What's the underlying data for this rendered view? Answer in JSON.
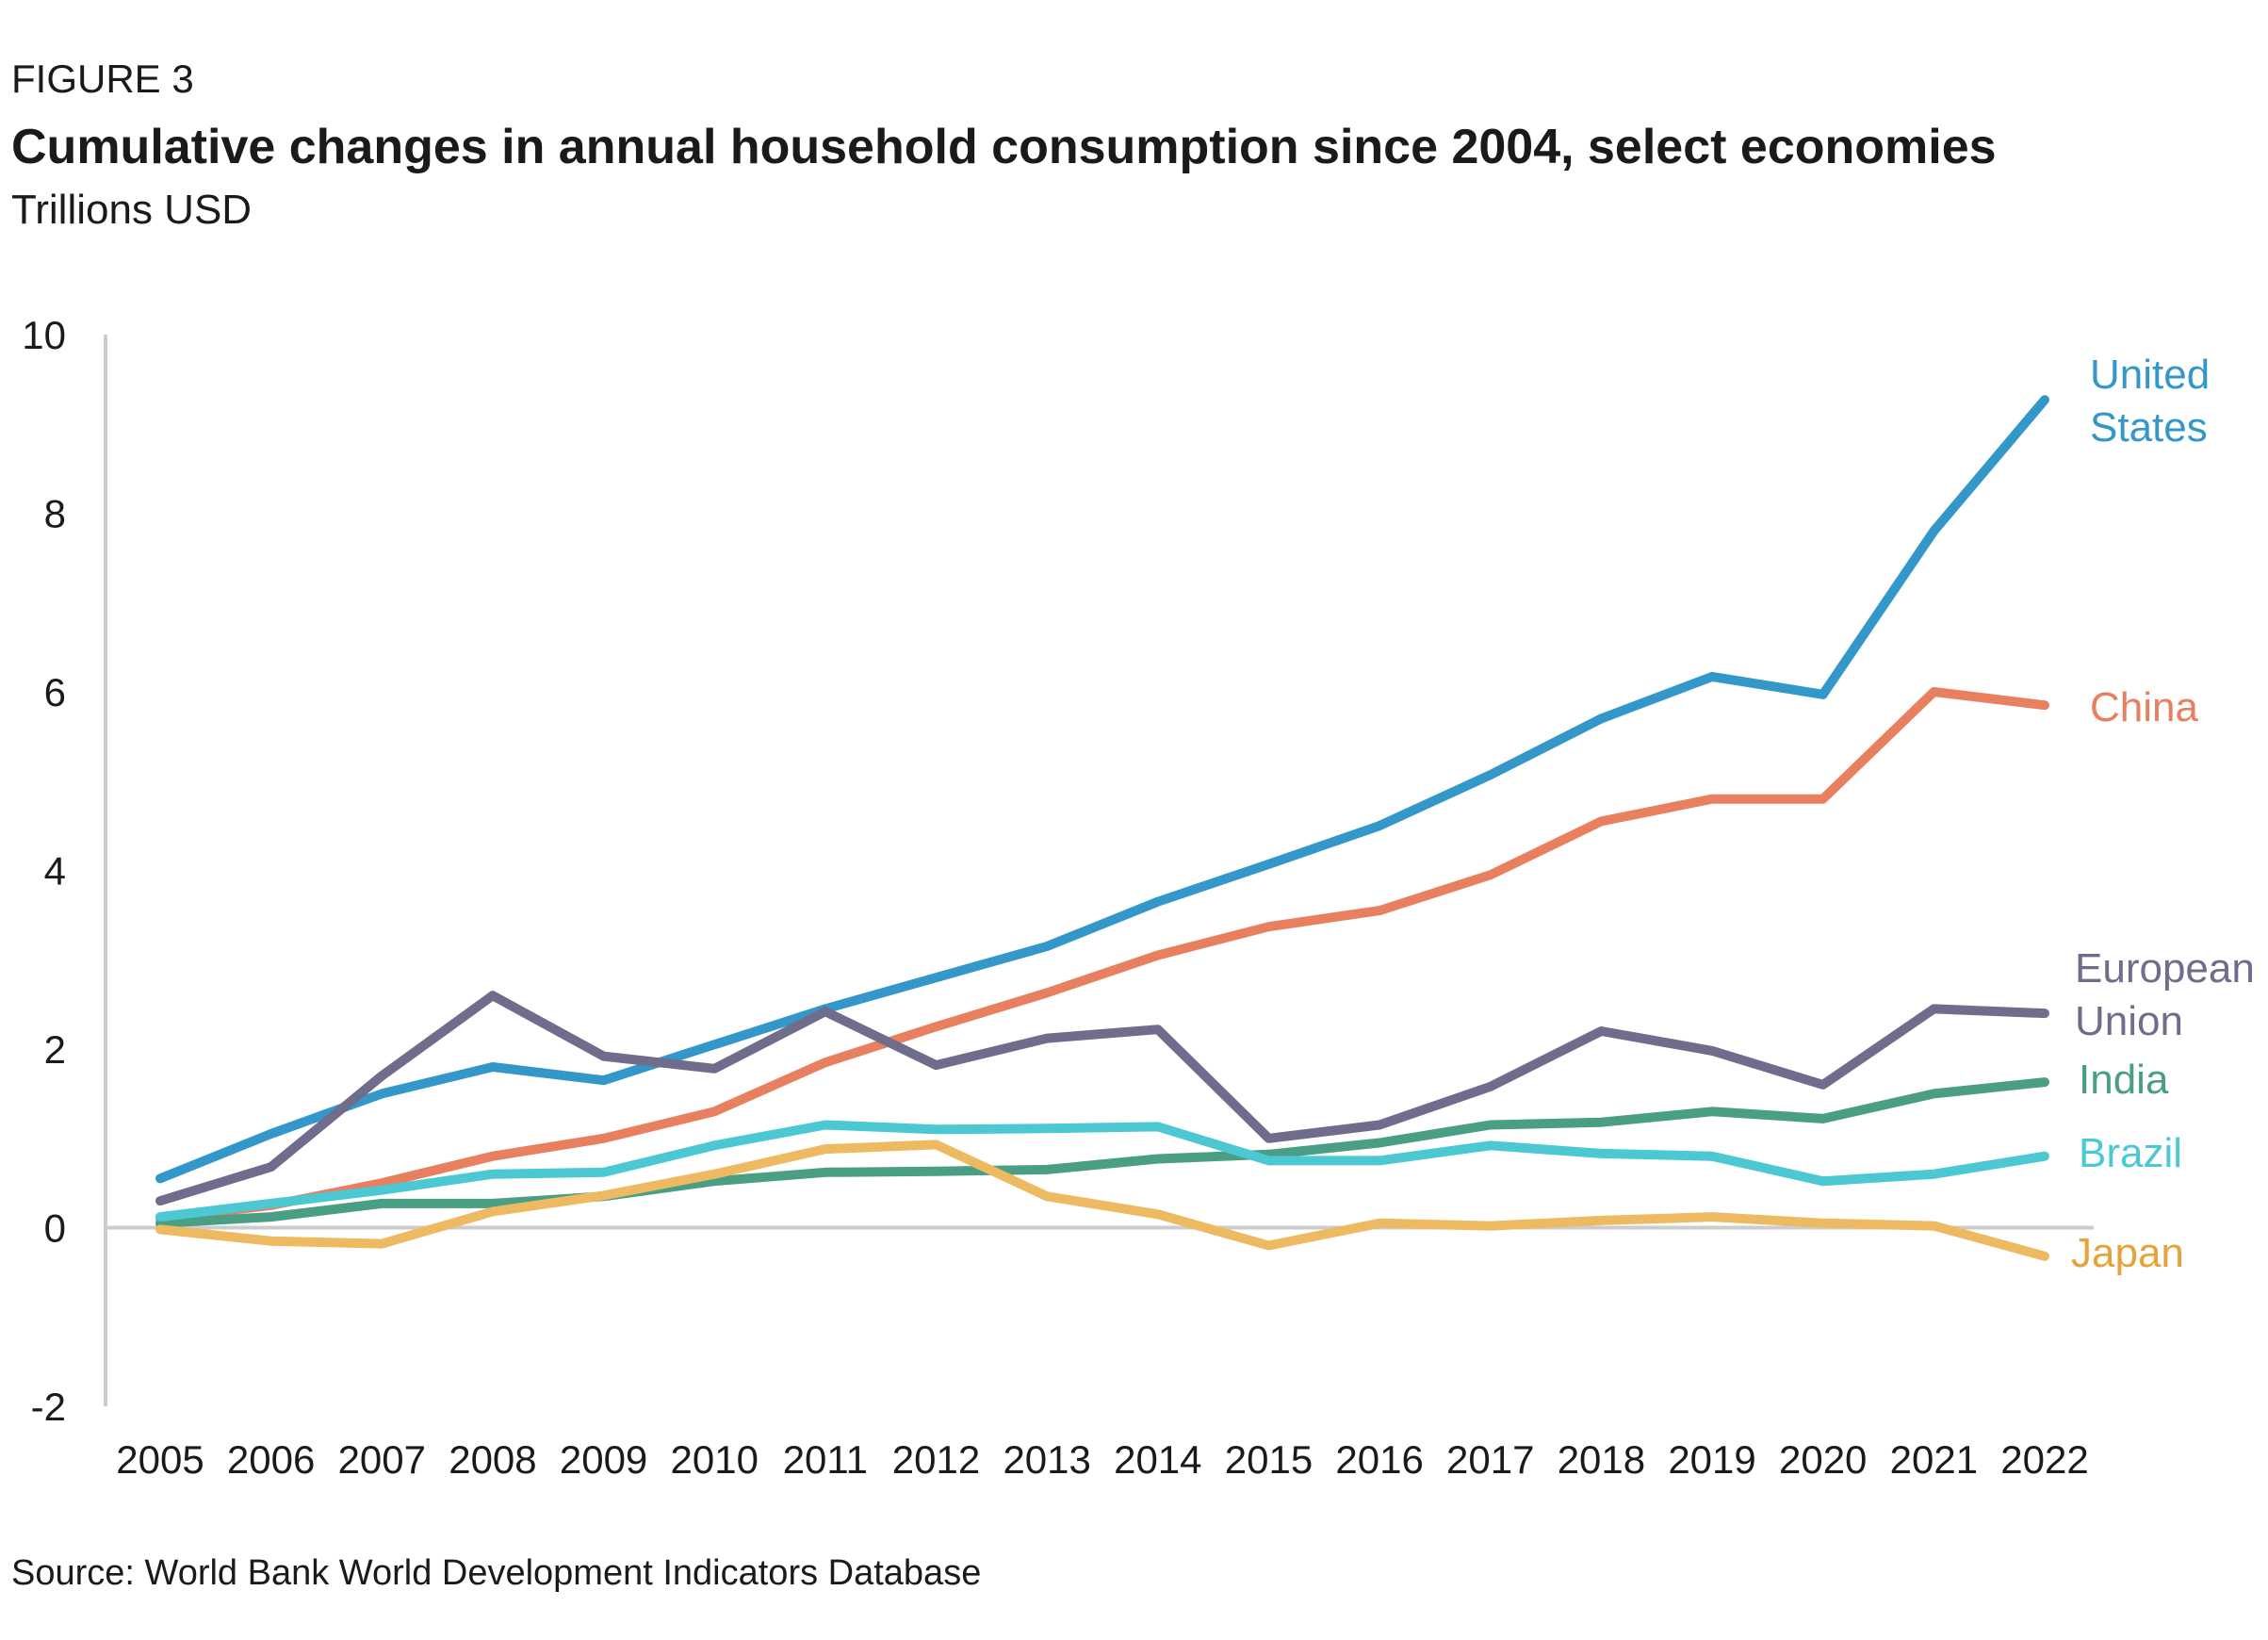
{
  "figure_label": "FIGURE 3",
  "title": "Cumulative changes in annual household consumption since 2004, select economies",
  "subtitle": "Trillions USD",
  "source": "Source: World Bank World Development Indicators Database",
  "chart_data": {
    "type": "line",
    "title": "Cumulative changes in annual household consumption since 2004, select economies",
    "ylabel": "Trillions USD",
    "xlabel": "",
    "x": [
      "2005",
      "2006",
      "2007",
      "2008",
      "2009",
      "2010",
      "2011",
      "2012",
      "2013",
      "2014",
      "2015",
      "2016",
      "2017",
      "2018",
      "2019",
      "2020",
      "2021",
      "2022"
    ],
    "ylim": [
      -2,
      10
    ],
    "yticks": [
      -2,
      0,
      2,
      4,
      6,
      8,
      10
    ],
    "grid": false,
    "legend": "direct-labels-right",
    "series": [
      {
        "name": "United States",
        "label_lines": [
          "United",
          "States"
        ],
        "color": "#3497C9",
        "values": [
          0.55,
          1.05,
          1.5,
          1.8,
          1.65,
          2.05,
          2.45,
          2.8,
          3.15,
          3.65,
          4.07,
          4.5,
          5.07,
          5.7,
          6.17,
          5.97,
          7.8,
          9.27
        ]
      },
      {
        "name": "China",
        "label_lines": [
          "China"
        ],
        "color": "#E8805F",
        "values": [
          0.1,
          0.25,
          0.5,
          0.8,
          1.0,
          1.3,
          1.85,
          2.25,
          2.63,
          3.05,
          3.37,
          3.55,
          3.95,
          4.55,
          4.8,
          4.8,
          6.0,
          5.85
        ]
      },
      {
        "name": "European Union",
        "label_lines": [
          "European",
          "Union"
        ],
        "color": "#706C8C",
        "values": [
          0.3,
          0.68,
          1.7,
          2.6,
          1.92,
          1.78,
          2.42,
          1.82,
          2.12,
          2.22,
          1.0,
          1.15,
          1.58,
          2.2,
          1.98,
          1.6,
          2.45,
          2.4
        ]
      },
      {
        "name": "India",
        "label_lines": [
          "India"
        ],
        "color": "#4A9E84",
        "values": [
          0.05,
          0.12,
          0.27,
          0.27,
          0.35,
          0.52,
          0.62,
          0.63,
          0.65,
          0.77,
          0.82,
          0.95,
          1.15,
          1.18,
          1.3,
          1.22,
          1.5,
          1.63
        ]
      },
      {
        "name": "Brazil",
        "label_lines": [
          "Brazil"
        ],
        "color": "#4CC8D2",
        "values": [
          0.12,
          0.27,
          0.42,
          0.6,
          0.62,
          0.92,
          1.15,
          1.1,
          1.11,
          1.13,
          0.75,
          0.75,
          0.92,
          0.83,
          0.8,
          0.52,
          0.6,
          0.8
        ]
      },
      {
        "name": "Japan",
        "label_lines": [
          "Japan"
        ],
        "color": "#EDBA62",
        "label_color": "#E5A33A",
        "values": [
          -0.02,
          -0.15,
          -0.18,
          0.18,
          0.36,
          0.6,
          0.88,
          0.93,
          0.35,
          0.15,
          -0.2,
          0.05,
          0.02,
          0.08,
          0.12,
          0.05,
          0.02,
          -0.32
        ]
      }
    ]
  }
}
